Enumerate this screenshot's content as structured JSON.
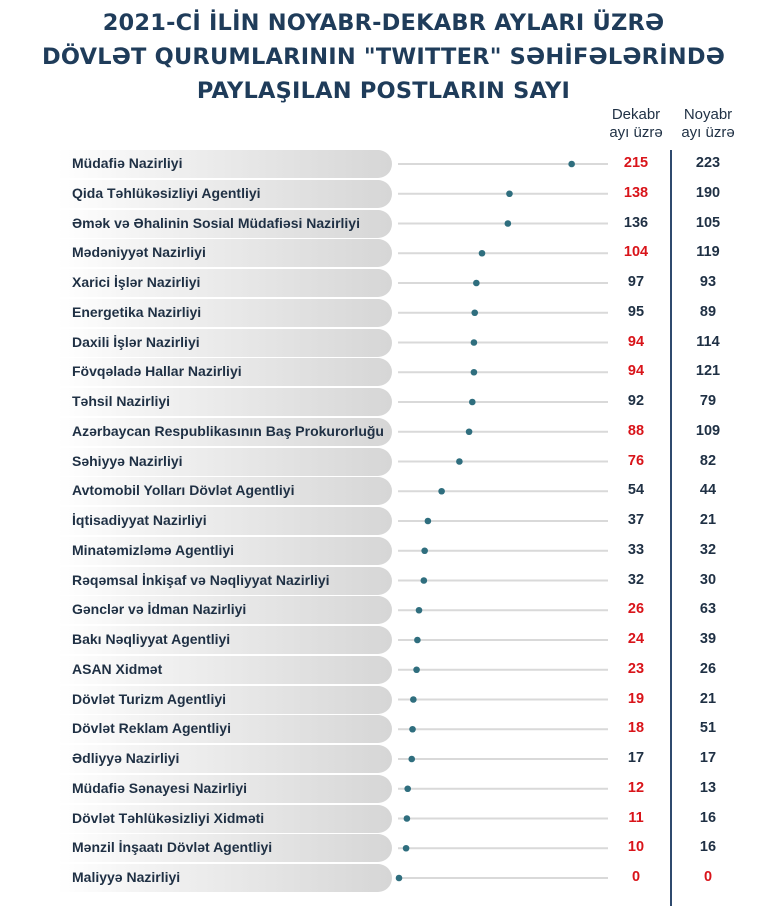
{
  "title_lines": [
    "2021-Cİ İLİN NOYABR-DEKABR AYLARI ÜZRƏ",
    "DÖVLƏT QURUMLARININ \"TWITTER\" SƏHİFƏLƏRİNDƏ",
    "PAYLAŞILAN POSTLARIN SAYI"
  ],
  "columns": {
    "december": [
      "Dekabr",
      "ayı üzrə"
    ],
    "november": [
      "Noyabr",
      "ayı üzrə"
    ]
  },
  "colors": {
    "title": "#1f3c5a",
    "text": "#1f3044",
    "decrease": "#d9141a",
    "line_start": "#5fcfb0",
    "line_end": "#2f8a8f",
    "dot": "#2f6e7e",
    "track": "#d9d9d9",
    "divider": "#2f4a6e"
  },
  "chart_data": {
    "type": "lollipop",
    "title": "2021-Cİ İLİN NOYABR-DEKABR AYLARI ÜZRƏ DÖVLƏT QURUMLARININ \"TWITTER\" SƏHİFƏLƏRİNDƏ PAYLAŞILAN POSTLARIN SAYI",
    "categories": [
      "Müdafiə Nazirliyi",
      "Qida Təhlükəsizliyi Agentliyi",
      "Əmək və Əhalinin Sosial Müdafiəsi Nazirliyi",
      "Mədəniyyət Nazirliyi",
      "Xarici İşlər Nazirliyi",
      "Energetika Nazirliyi",
      "Daxili İşlər Nazirliyi",
      "Fövqəladə Hallar Nazirliyi",
      "Təhsil Nazirliyi",
      "Azərbaycan Respublikasının Baş Prokurorluğu",
      "Səhiyyə Nazirliyi",
      "Avtomobil Yolları Dövlət Agentliyi",
      "İqtisadiyyat Nazirliyi",
      "Minatəmizləmə Agentliyi",
      "Rəqəmsal İnkişaf və Nəqliyyat Nazirliyi",
      "Gənclər və İdman Nazirliyi",
      "Bakı Nəqliyyat Agentliyi",
      "ASAN Xidmət",
      "Dövlət Turizm Agentliyi",
      "Dövlət Reklam Agentliyi",
      "Ədliyyə Nazirliyi",
      "Müdafiə Sənayesi Nazirliyi",
      "Dövlət Təhlükəsizliyi Xidməti",
      "Mənzil İnşaatı Dövlət Agentliyi",
      "Maliyyə Nazirliyi"
    ],
    "series": [
      {
        "name": "Dekabr ayı üzrə",
        "values": [
          215,
          138,
          136,
          104,
          97,
          95,
          94,
          94,
          92,
          88,
          76,
          54,
          37,
          33,
          32,
          26,
          24,
          23,
          19,
          18,
          17,
          12,
          11,
          10,
          0
        ]
      },
      {
        "name": "Noyabr ayı üzrə",
        "values": [
          223,
          190,
          105,
          119,
          93,
          89,
          114,
          121,
          79,
          109,
          82,
          44,
          21,
          32,
          30,
          63,
          39,
          26,
          21,
          51,
          17,
          13,
          16,
          16,
          0
        ]
      }
    ],
    "xlim": [
      0,
      260
    ],
    "grid": false,
    "legend": "none"
  }
}
